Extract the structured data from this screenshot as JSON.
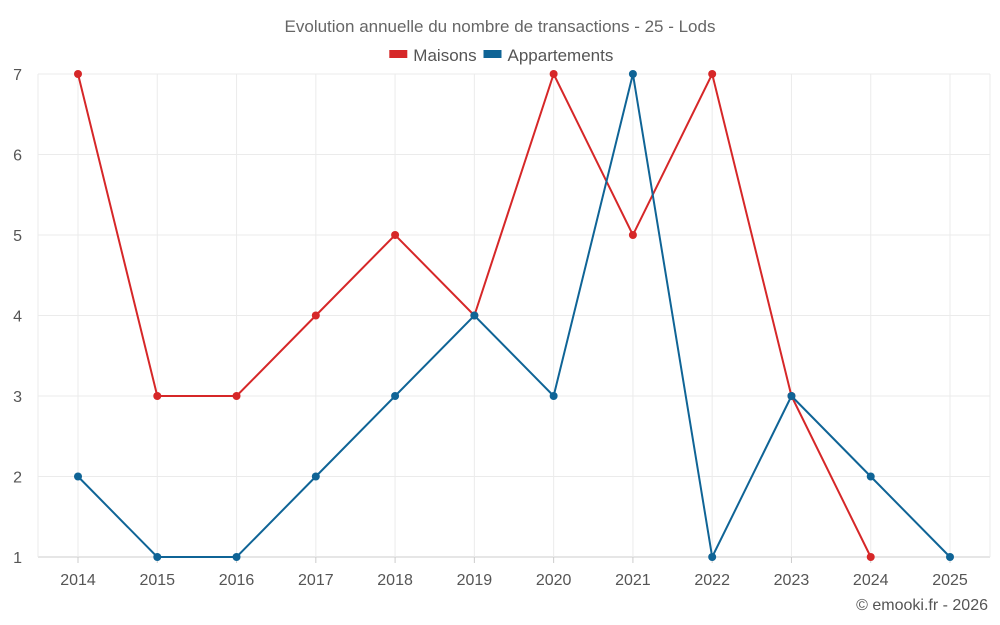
{
  "chart_data": {
    "type": "line",
    "title": "Evolution annuelle du nombre de transactions - 25 - Lods",
    "categories": [
      "2014",
      "2015",
      "2016",
      "2017",
      "2018",
      "2019",
      "2020",
      "2021",
      "2022",
      "2023",
      "2024",
      "2025"
    ],
    "series": [
      {
        "name": "Maisons",
        "color": "#d62728",
        "values": [
          7,
          3,
          3,
          4,
          5,
          4,
          7,
          5,
          7,
          3,
          1,
          null
        ]
      },
      {
        "name": "Appartements",
        "color": "#0f6496",
        "values": [
          2,
          1,
          1,
          2,
          3,
          4,
          3,
          7,
          1,
          3,
          2,
          1
        ]
      }
    ],
    "ylim": [
      1,
      7
    ],
    "yticks": [
      1,
      2,
      3,
      4,
      5,
      6,
      7
    ],
    "grid": true,
    "legend_position": "top-center",
    "xlabel": "",
    "ylabel": ""
  },
  "credit": "© emooki.fr - 2026"
}
